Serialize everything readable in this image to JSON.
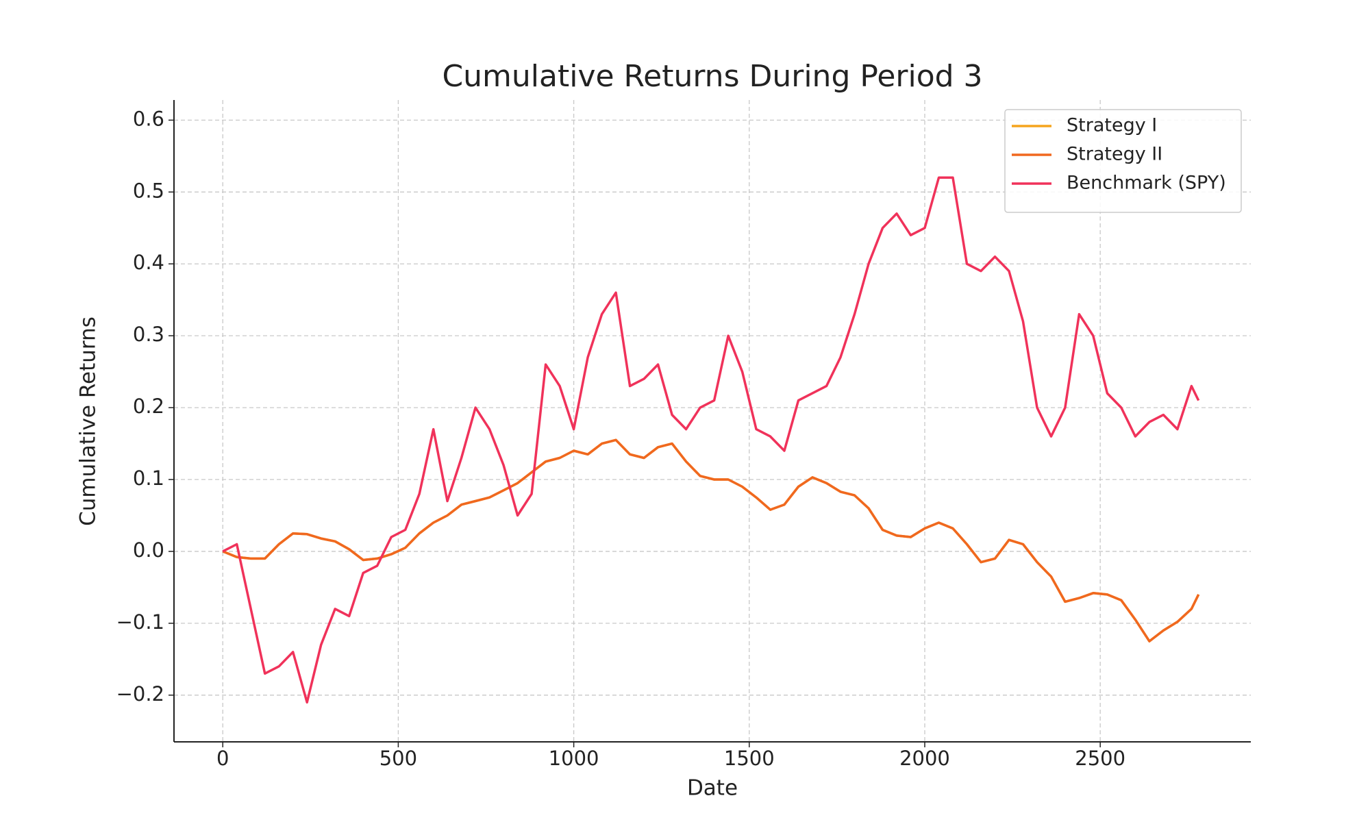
{
  "chart_data": {
    "type": "line",
    "title": "Cumulative Returns During Period 3",
    "x_label": "Date",
    "y_label": "Cumulative Returns",
    "x": [
      0,
      40,
      80,
      120,
      160,
      200,
      240,
      280,
      320,
      360,
      400,
      440,
      480,
      520,
      560,
      600,
      640,
      680,
      720,
      760,
      800,
      840,
      880,
      920,
      960,
      1000,
      1040,
      1080,
      1120,
      1160,
      1200,
      1240,
      1280,
      1320,
      1360,
      1400,
      1440,
      1480,
      1520,
      1560,
      1600,
      1640,
      1680,
      1720,
      1760,
      1800,
      1840,
      1880,
      1920,
      1960,
      2000,
      2040,
      2080,
      2120,
      2160,
      2200,
      2240,
      2280,
      2320,
      2360,
      2400,
      2440,
      2480,
      2520,
      2560,
      2600,
      2640,
      2680,
      2720,
      2760,
      2780
    ],
    "series": [
      {
        "name": "Strategy I",
        "color": "#f5a41d",
        "values": [
          0,
          -0.008,
          -0.01,
          -0.01,
          0.01,
          0.025,
          0.024,
          0.018,
          0.014,
          0.003,
          -0.012,
          -0.01,
          -0.004,
          0.005,
          0.025,
          0.04,
          0.05,
          0.065,
          0.07,
          0.075,
          0.085,
          0.095,
          0.11,
          0.125,
          0.13,
          0.14,
          0.135,
          0.15,
          0.155,
          0.135,
          0.13,
          0.145,
          0.15,
          0.125,
          0.105,
          0.1,
          0.1,
          0.09,
          0.075,
          0.058,
          0.065,
          0.09,
          0.103,
          0.095,
          0.083,
          0.078,
          0.06,
          0.03,
          0.022,
          0.02,
          0.032,
          0.04,
          0.032,
          0.01,
          -0.015,
          -0.01,
          0.016,
          0.01,
          -0.015,
          -0.035,
          -0.07,
          -0.065,
          -0.058,
          -0.06,
          -0.068,
          -0.095,
          -0.125,
          -0.11,
          -0.098,
          -0.08,
          -0.06
        ]
      },
      {
        "name": "Strategy II",
        "color": "#f0681f",
        "values": [
          0,
          -0.008,
          -0.01,
          -0.01,
          0.01,
          0.025,
          0.024,
          0.018,
          0.014,
          0.003,
          -0.012,
          -0.01,
          -0.004,
          0.005,
          0.025,
          0.04,
          0.05,
          0.065,
          0.07,
          0.075,
          0.085,
          0.095,
          0.11,
          0.125,
          0.13,
          0.14,
          0.135,
          0.15,
          0.155,
          0.135,
          0.13,
          0.145,
          0.15,
          0.125,
          0.105,
          0.1,
          0.1,
          0.09,
          0.075,
          0.058,
          0.065,
          0.09,
          0.103,
          0.095,
          0.083,
          0.078,
          0.06,
          0.03,
          0.022,
          0.02,
          0.032,
          0.04,
          0.032,
          0.01,
          -0.015,
          -0.01,
          0.016,
          0.01,
          -0.015,
          -0.035,
          -0.07,
          -0.065,
          -0.058,
          -0.06,
          -0.068,
          -0.095,
          -0.125,
          -0.11,
          -0.098,
          -0.08,
          -0.06
        ]
      },
      {
        "name": "Benchmark (SPY)",
        "color": "#f0325a",
        "values": [
          0,
          0.01,
          -0.08,
          -0.17,
          -0.16,
          -0.14,
          -0.21,
          -0.13,
          -0.08,
          -0.09,
          -0.03,
          -0.02,
          0.02,
          0.03,
          0.08,
          0.17,
          0.07,
          0.13,
          0.2,
          0.17,
          0.12,
          0.05,
          0.08,
          0.26,
          0.23,
          0.17,
          0.27,
          0.33,
          0.36,
          0.23,
          0.24,
          0.26,
          0.19,
          0.17,
          0.2,
          0.21,
          0.3,
          0.25,
          0.17,
          0.16,
          0.14,
          0.21,
          0.22,
          0.23,
          0.27,
          0.33,
          0.4,
          0.45,
          0.47,
          0.44,
          0.45,
          0.52,
          0.52,
          0.4,
          0.39,
          0.41,
          0.39,
          0.32,
          0.2,
          0.16,
          0.2,
          0.33,
          0.3,
          0.22,
          0.2,
          0.16,
          0.18,
          0.19,
          0.17,
          0.23,
          0.21
        ]
      }
    ],
    "xlim": [
      -139,
      2929
    ],
    "ylim": [
      -0.265,
      0.628
    ],
    "xticks": [
      0,
      500,
      1000,
      1500,
      2000,
      2500
    ],
    "yticks": [
      {
        "value": -0.2,
        "label": "−0.2"
      },
      {
        "value": -0.1,
        "label": "−0.1"
      },
      {
        "value": 0,
        "label": "0.0"
      },
      0.1,
      0.2,
      0.3,
      0.4,
      0.5,
      0.6
    ],
    "grid": true,
    "legend": "upper right"
  }
}
